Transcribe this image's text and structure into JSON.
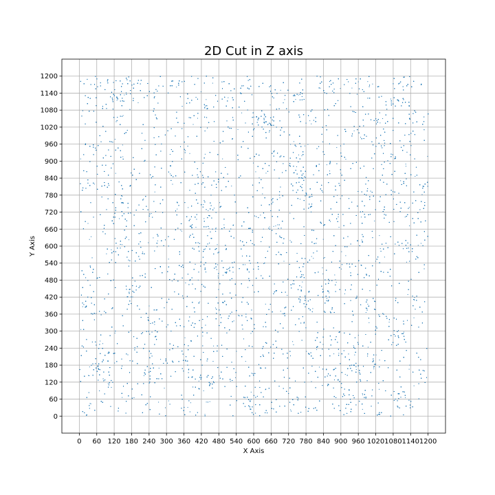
{
  "chart_data": {
    "type": "scatter",
    "title": "2D Cut in Z axis",
    "xlabel": "X Axis",
    "ylabel": "Y Axis",
    "xlim": [
      -60,
      1260
    ],
    "ylim": [
      -60,
      1260
    ],
    "xticks": [
      0,
      60,
      120,
      180,
      240,
      300,
      360,
      420,
      480,
      540,
      600,
      660,
      720,
      780,
      840,
      900,
      960,
      1020,
      1080,
      1140,
      1200
    ],
    "yticks": [
      0,
      60,
      120,
      180,
      240,
      300,
      360,
      420,
      480,
      540,
      600,
      660,
      720,
      780,
      840,
      900,
      960,
      1020,
      1080,
      1140,
      1200
    ],
    "grid": true,
    "legend": "none",
    "marker_color": "#1f77b4",
    "series": [
      {
        "points_description": "dense uniformly scattered points filling the region 0–1200 on both axes",
        "x_range": [
          0,
          1200
        ],
        "y_range": [
          0,
          1200
        ],
        "approx_count": 14000
      }
    ]
  }
}
